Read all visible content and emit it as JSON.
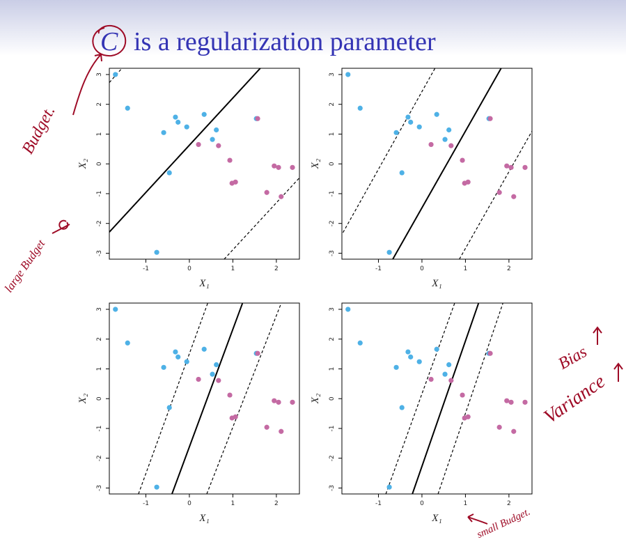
{
  "title_symbol": "C",
  "title": "is a regularization parameter",
  "annotations": [
    "Budget.",
    "large Budget",
    "Bias",
    "Variance",
    "small Budget."
  ],
  "chart_data": [
    {
      "type": "scatter",
      "xlabel": "X₁",
      "ylabel": "X₂",
      "xlim": [
        -1.84,
        2.53
      ],
      "ylim": [
        -3.2,
        3.21
      ],
      "xticks": [
        -1,
        0,
        1,
        2
      ],
      "yticks": [
        -3,
        -2,
        -1,
        0,
        1,
        2,
        3
      ],
      "series": [
        {
          "color": "#4eb1e6",
          "x": [
            -1.7,
            -1.42,
            -0.59,
            -0.32,
            -0.26,
            -0.06,
            0.34,
            0.53,
            0.62,
            1.54,
            -0.46,
            -0.75
          ],
          "y": [
            3.0,
            1.87,
            1.05,
            1.57,
            1.4,
            1.24,
            1.66,
            0.82,
            1.14,
            1.52,
            -0.3,
            -2.97
          ]
        },
        {
          "color": "#c46aa3",
          "x": [
            0.21,
            0.67,
            0.93,
            0.98,
            1.06,
            1.57,
            1.78,
            1.95,
            2.05,
            2.11,
            2.37
          ],
          "y": [
            0.65,
            0.61,
            0.12,
            -0.65,
            -0.61,
            1.52,
            -0.96,
            -0.07,
            -0.12,
            -1.1,
            -0.12
          ]
        }
      ],
      "lines": [
        {
          "style": "solid",
          "x": [
            -1.84,
            1.63
          ],
          "y": [
            -2.29,
            3.21
          ]
        },
        {
          "style": "dashed",
          "x": [
            -1.84,
            -1.55
          ],
          "y": [
            2.73,
            3.21
          ]
        },
        {
          "style": "dashed",
          "x": [
            0.8,
            2.53
          ],
          "y": [
            -3.2,
            -0.47
          ]
        }
      ]
    },
    {
      "type": "scatter",
      "xlabel": "X₁",
      "ylabel": "X₂",
      "xlim": [
        -1.84,
        2.53
      ],
      "ylim": [
        -3.2,
        3.21
      ],
      "xticks": [
        -1,
        0,
        1,
        2
      ],
      "yticks": [
        -3,
        -2,
        -1,
        0,
        1,
        2,
        3
      ],
      "series": [
        {
          "color": "#4eb1e6",
          "x": [
            -1.7,
            -1.42,
            -0.59,
            -0.32,
            -0.26,
            -0.06,
            0.34,
            0.53,
            0.62,
            1.54,
            -0.46,
            -0.75
          ],
          "y": [
            3.0,
            1.87,
            1.05,
            1.57,
            1.4,
            1.24,
            1.66,
            0.82,
            1.14,
            1.52,
            -0.3,
            -2.97
          ]
        },
        {
          "color": "#c46aa3",
          "x": [
            0.21,
            0.67,
            0.93,
            0.98,
            1.06,
            1.57,
            1.78,
            1.95,
            2.05,
            2.11,
            2.37
          ],
          "y": [
            0.65,
            0.61,
            0.12,
            -0.65,
            -0.61,
            1.52,
            -0.96,
            -0.07,
            -0.12,
            -1.1,
            -0.12
          ]
        }
      ],
      "lines": [
        {
          "style": "solid",
          "x": [
            -0.67,
            1.82
          ],
          "y": [
            -3.2,
            3.21
          ]
        },
        {
          "style": "dashed",
          "x": [
            -1.87,
            0.3
          ],
          "y": [
            -2.45,
            3.21
          ]
        },
        {
          "style": "dashed",
          "x": [
            0.86,
            2.53
          ],
          "y": [
            -3.2,
            1.1
          ]
        }
      ]
    },
    {
      "type": "scatter",
      "xlabel": "X₁",
      "ylabel": "X₂",
      "xlim": [
        -1.84,
        2.53
      ],
      "ylim": [
        -3.2,
        3.21
      ],
      "xticks": [
        -1,
        0,
        1,
        2
      ],
      "yticks": [
        -3,
        -2,
        -1,
        0,
        1,
        2,
        3
      ],
      "series": [
        {
          "color": "#4eb1e6",
          "x": [
            -1.7,
            -1.42,
            -0.59,
            -0.32,
            -0.26,
            -0.06,
            0.34,
            0.53,
            0.62,
            1.54,
            -0.46,
            -0.75
          ],
          "y": [
            3.0,
            1.87,
            1.05,
            1.57,
            1.4,
            1.24,
            1.66,
            0.82,
            1.14,
            1.52,
            -0.3,
            -2.97
          ]
        },
        {
          "color": "#c46aa3",
          "x": [
            0.21,
            0.67,
            0.93,
            0.98,
            1.06,
            1.57,
            1.78,
            1.95,
            2.05,
            2.11,
            2.37
          ],
          "y": [
            0.65,
            0.61,
            0.12,
            -0.65,
            -0.61,
            1.52,
            -0.96,
            -0.07,
            -0.12,
            -1.1,
            -0.12
          ]
        }
      ],
      "lines": [
        {
          "style": "solid",
          "x": [
            -0.4,
            1.22
          ],
          "y": [
            -3.2,
            3.2
          ]
        },
        {
          "style": "dashed",
          "x": [
            -1.17,
            0.42
          ],
          "y": [
            -3.2,
            3.2
          ]
        },
        {
          "style": "dashed",
          "x": [
            0.4,
            2.11
          ],
          "y": [
            -3.2,
            3.2
          ]
        }
      ]
    },
    {
      "type": "scatter",
      "xlabel": "X₁",
      "ylabel": "X₂",
      "xlim": [
        -1.84,
        2.53
      ],
      "ylim": [
        -3.2,
        3.21
      ],
      "xticks": [
        -1,
        0,
        1,
        2
      ],
      "yticks": [
        -3,
        -2,
        -1,
        0,
        1,
        2,
        3
      ],
      "series": [
        {
          "color": "#4eb1e6",
          "x": [
            -1.7,
            -1.42,
            -0.59,
            -0.32,
            -0.26,
            -0.06,
            0.34,
            0.53,
            0.62,
            1.54,
            -0.46,
            -0.75
          ],
          "y": [
            3.0,
            1.87,
            1.05,
            1.57,
            1.4,
            1.24,
            1.66,
            0.82,
            1.14,
            1.52,
            -0.3,
            -2.97
          ]
        },
        {
          "color": "#c46aa3",
          "x": [
            0.21,
            0.67,
            0.93,
            0.98,
            1.06,
            1.57,
            1.78,
            1.95,
            2.05,
            2.11,
            2.37
          ],
          "y": [
            0.65,
            0.61,
            0.12,
            -0.65,
            -0.61,
            1.52,
            -0.96,
            -0.07,
            -0.12,
            -1.1,
            -0.12
          ]
        }
      ],
      "lines": [
        {
          "style": "solid",
          "x": [
            -0.22,
            1.3
          ],
          "y": [
            -3.2,
            3.2
          ]
        },
        {
          "style": "dashed",
          "x": [
            -0.83,
            0.75
          ],
          "y": [
            -3.2,
            3.2
          ]
        },
        {
          "style": "dashed",
          "x": [
            0.37,
            1.86
          ],
          "y": [
            -3.2,
            3.2
          ]
        }
      ]
    }
  ]
}
